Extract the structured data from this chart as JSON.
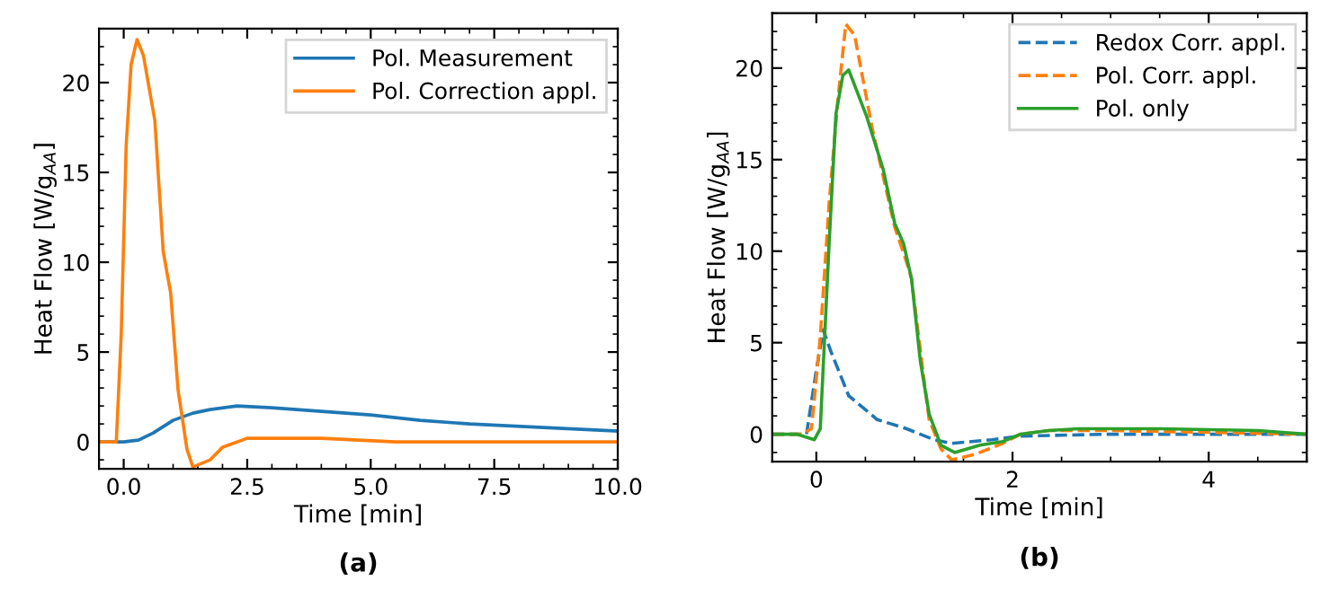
{
  "chart_data": [
    {
      "type": "line",
      "xlabel": "Time [min]",
      "ylabel": "Heat Flow [W/g$_{AA}$]",
      "annotations": [
        "(a)"
      ],
      "xlim": [
        -0.5,
        10
      ],
      "ylim": [
        -1.5,
        23
      ],
      "xticks": [
        {
          "value": 0,
          "label": "0.0"
        },
        {
          "value": 2.5,
          "label": "2.5"
        },
        {
          "value": 5,
          "label": "5.0"
        },
        {
          "value": 7.5,
          "label": "7.5"
        },
        {
          "value": 10,
          "label": "10.0"
        }
      ],
      "yticks": [
        0,
        5,
        10,
        15,
        20
      ],
      "legend": "top right",
      "grid": false,
      "line_style": "solid",
      "series": [
        {
          "name": "Pol. Measurement",
          "color": "#1f77b4",
          "x": [
            -0.5,
            0.0,
            0.3,
            0.6,
            1.0,
            1.4,
            1.75,
            2.3,
            3.0,
            4.0,
            5.0,
            6.0,
            7.0,
            8.5,
            10.0
          ],
          "values": [
            0,
            0,
            0.1,
            0.5,
            1.2,
            1.6,
            1.8,
            2.0,
            1.9,
            1.7,
            1.5,
            1.2,
            1.0,
            0.8,
            0.6
          ]
        },
        {
          "name": "Pol. Correction appl.",
          "color": "#ff7f0e",
          "x": [
            -0.5,
            -0.15,
            -0.05,
            0.05,
            0.15,
            0.27,
            0.4,
            0.63,
            0.8,
            0.95,
            1.1,
            1.28,
            1.4,
            1.75,
            2.0,
            2.5,
            3.0,
            4.0,
            5.5,
            10.0
          ],
          "values": [
            0,
            0,
            6.0,
            16.5,
            21.0,
            22.4,
            21.5,
            17.9,
            10.6,
            8.3,
            2.9,
            -0.4,
            -1.4,
            -1.0,
            -0.3,
            0.2,
            0.2,
            0.2,
            0,
            0
          ]
        }
      ]
    },
    {
      "type": "line",
      "xlabel": "Time [min]",
      "ylabel": "Heat Flow [W/g$_{AA}$]",
      "annotations": [
        "(b)"
      ],
      "xlim": [
        -0.45,
        5
      ],
      "ylim": [
        -1.5,
        23
      ],
      "xticks": [
        0,
        2,
        4
      ],
      "yticks": [
        0,
        5,
        10,
        15,
        20
      ],
      "legend": "top right",
      "grid": false,
      "series": [
        {
          "name": "Redox Corr. appl.",
          "color": "#1f77b4",
          "line_style": "dashed",
          "x": [
            -0.45,
            -0.1,
            0.0,
            0.07,
            0.15,
            0.33,
            0.62,
            0.92,
            1.2,
            1.38,
            1.79,
            2.08,
            3.0,
            5.0
          ],
          "values": [
            0,
            0,
            3.5,
            5.7,
            4.5,
            2.1,
            0.8,
            0.3,
            -0.3,
            -0.5,
            -0.3,
            -0.1,
            0,
            0
          ]
        },
        {
          "name": "Pol. Corr. appl.",
          "color": "#ff7f0e",
          "line_style": "dashed",
          "x": [
            -0.45,
            -0.15,
            -0.05,
            0.04,
            0.13,
            0.22,
            0.3,
            0.39,
            0.57,
            0.8,
            0.92,
            0.97,
            1.09,
            1.15,
            1.27,
            1.38,
            1.62,
            1.9,
            2.08,
            2.37,
            3.0,
            4.0,
            5.0
          ],
          "values": [
            0,
            0,
            0.3,
            5.3,
            12.6,
            18.3,
            22.4,
            21.8,
            16.7,
            11.3,
            9.4,
            8.5,
            3.3,
            0.8,
            -0.8,
            -1.4,
            -1.1,
            -0.5,
            0,
            0.2,
            0.2,
            0.1,
            0.0
          ]
        },
        {
          "name": "Pol. only",
          "color": "#2ca02c",
          "line_style": "solid",
          "x": [
            -0.45,
            -0.2,
            -0.02,
            0.04,
            0.13,
            0.2,
            0.27,
            0.33,
            0.51,
            0.68,
            0.8,
            0.89,
            0.97,
            1.06,
            1.15,
            1.27,
            1.41,
            1.67,
            1.9,
            2.08,
            2.37,
            2.67,
            3.5,
            4.5,
            5.0
          ],
          "values": [
            0,
            0,
            -0.3,
            0.3,
            10.4,
            17.5,
            19.6,
            19.9,
            17.4,
            14.5,
            11.5,
            10.4,
            8.5,
            4.0,
            1.1,
            -0.6,
            -1.0,
            -0.6,
            -0.4,
            0,
            0.2,
            0.3,
            0.3,
            0.2,
            0.0
          ]
        }
      ]
    }
  ]
}
